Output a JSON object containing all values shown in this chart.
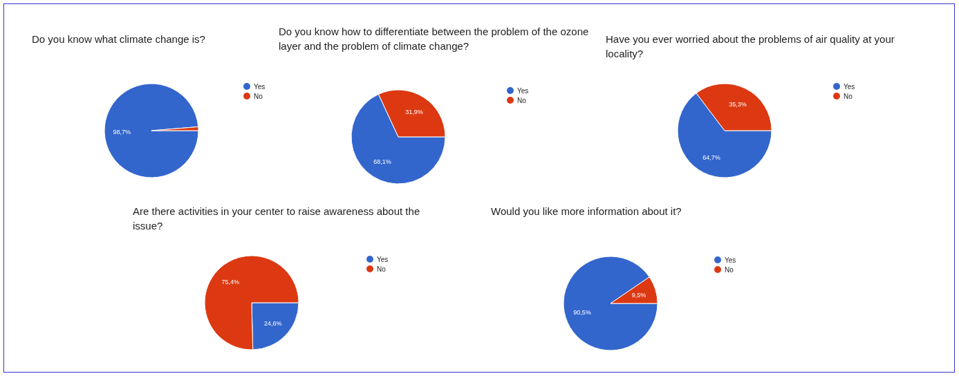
{
  "chart_data": [
    {
      "type": "pie",
      "title": "Do you know what climate change is?",
      "categories": [
        "Yes",
        "No"
      ],
      "values": [
        98.7,
        1.3
      ],
      "colors": [
        "#3366cc",
        "#dc3912"
      ],
      "value_labels": [
        "98,7%",
        null
      ],
      "legend": "right"
    },
    {
      "type": "pie",
      "title": "Do you know how to differentiate between the problem of the ozone layer and the problem of climate change?",
      "categories": [
        "Yes",
        "No"
      ],
      "values": [
        68.1,
        31.9
      ],
      "colors": [
        "#3366cc",
        "#dc3912"
      ],
      "value_labels": [
        "68,1%",
        "31,9%"
      ],
      "legend": "right"
    },
    {
      "type": "pie",
      "title": "Have you ever worried about the problems of air quality at your locality?",
      "categories": [
        "Yes",
        "No"
      ],
      "values": [
        64.7,
        35.3
      ],
      "colors": [
        "#3366cc",
        "#dc3912"
      ],
      "value_labels": [
        "64,7%",
        "35,3%"
      ],
      "legend": "right"
    },
    {
      "type": "pie",
      "title": "Are there activities in your center to raise awareness about the issue?",
      "categories": [
        "Yes",
        "No"
      ],
      "values": [
        24.6,
        75.4
      ],
      "colors": [
        "#3366cc",
        "#dc3912"
      ],
      "value_labels": [
        "24,6%",
        "75,4%"
      ],
      "legend": "right"
    },
    {
      "type": "pie",
      "title": "Would you like more information about it?",
      "categories": [
        "Yes",
        "No"
      ],
      "values": [
        90.5,
        9.5
      ],
      "colors": [
        "#3366cc",
        "#dc3912"
      ],
      "value_labels": [
        "90,5%",
        "9,5%"
      ],
      "legend": "right"
    }
  ]
}
